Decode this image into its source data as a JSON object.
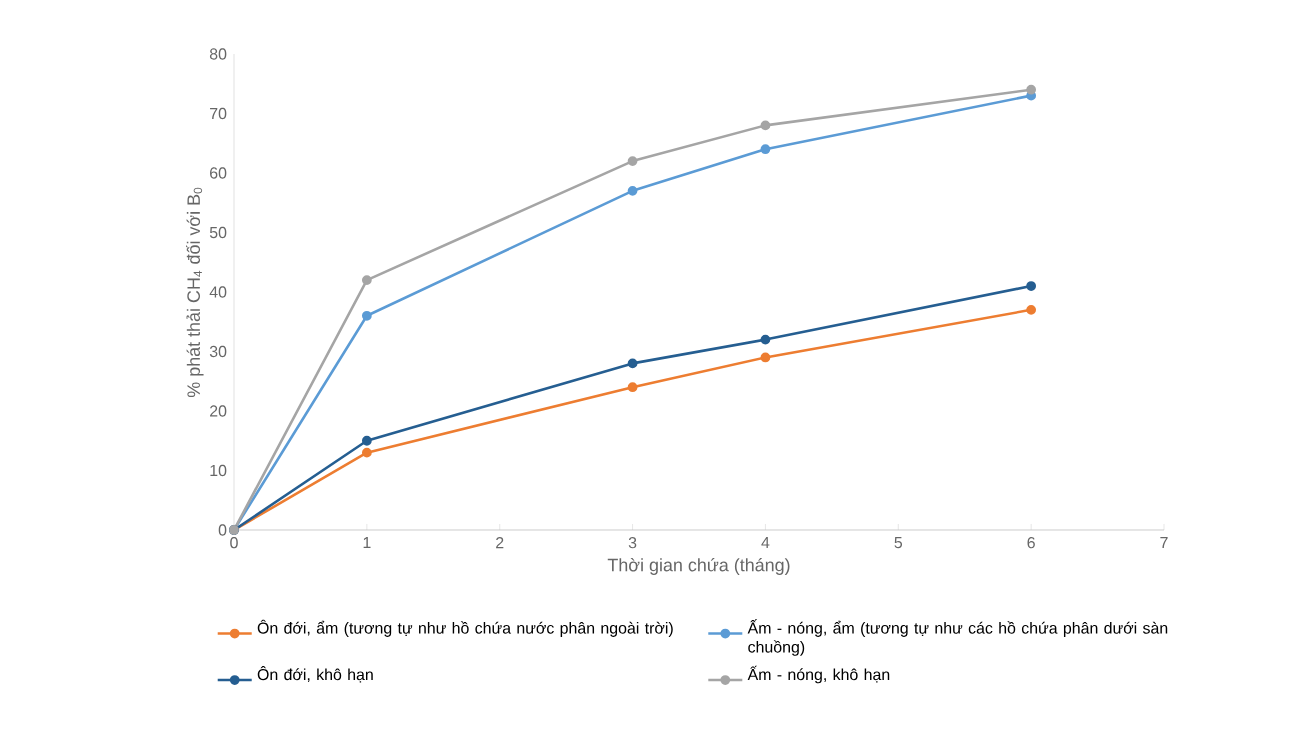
{
  "chart_data": {
    "type": "line",
    "xlabel": "Thời gian chứa (tháng)",
    "ylabel": "% phát thải CH$_{4}$ đối với B$_{0}$",
    "x": [
      0,
      1,
      3,
      4,
      6
    ],
    "series": [
      {
        "name": "Ôn đới, ẩm (tương tự như hồ chứa nước phân ngoài trời)",
        "color": "#ed7d31",
        "values": [
          0,
          13,
          24,
          29,
          37
        ]
      },
      {
        "name": "Ấm - nóng, ẩm (tương tự như các hồ chứa phân dưới sàn chuồng)",
        "color": "#5b9bd5",
        "values": [
          0,
          36,
          57,
          64,
          73
        ]
      },
      {
        "name": "Ôn đới, khô hạn",
        "color": "#255e91",
        "values": [
          0,
          15,
          28,
          32,
          41
        ]
      },
      {
        "name": "Ấm - nóng, khô hạn",
        "color": "#a5a5a5",
        "values": [
          0,
          42,
          62,
          68,
          74
        ]
      }
    ],
    "xlim": [
      0,
      7
    ],
    "xticks": [
      0,
      1,
      2,
      3,
      4,
      5,
      6,
      7
    ],
    "ylim": [
      0,
      80
    ],
    "yticks": [
      0,
      10,
      20,
      30,
      40,
      50,
      60,
      70,
      80
    ],
    "marker": "circle",
    "line_style": "solid",
    "legend": "bottom",
    "grid": false
  }
}
